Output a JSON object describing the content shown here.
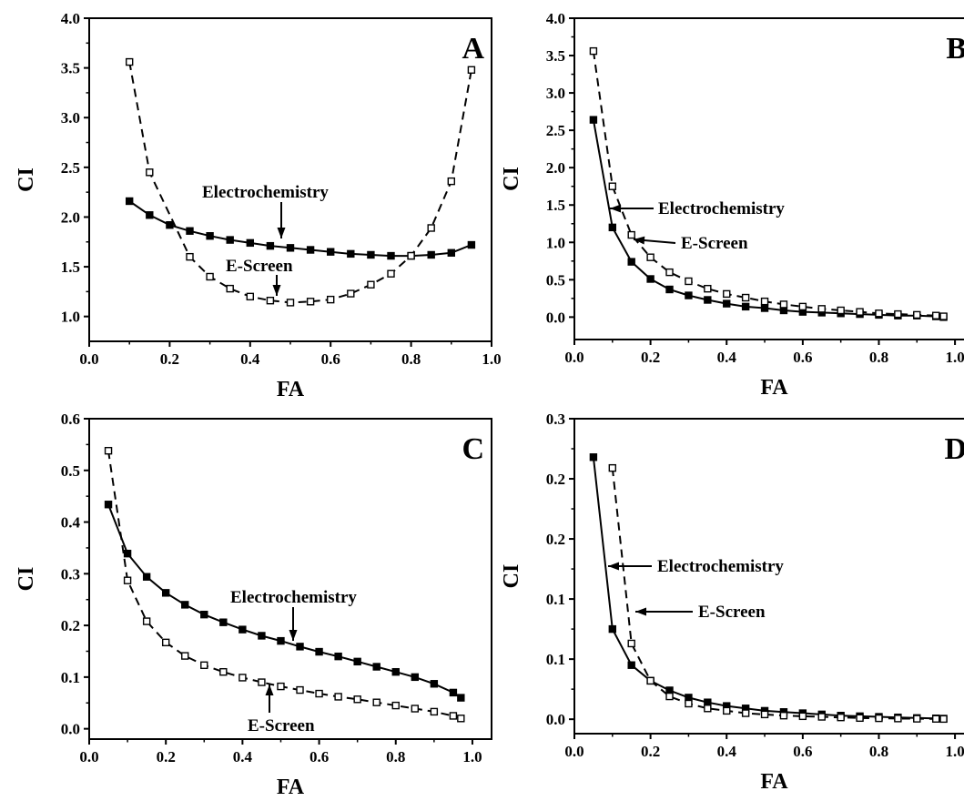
{
  "chart_data": [
    {
      "panel_label": "A",
      "type": "line",
      "xlabel": "FA",
      "ylabel": "CI",
      "xlim": [
        0.0,
        1.0
      ],
      "ylim": [
        0.75,
        4.0
      ],
      "xticks": [
        0.0,
        0.2,
        0.4,
        0.6,
        0.8,
        1.0
      ],
      "xtick_labels": [
        "0.0",
        "0.2",
        "0.4",
        "0.6",
        "0.8",
        "1.0"
      ],
      "yticks": [
        1.0,
        1.5,
        2.0,
        2.5,
        3.0,
        3.5,
        4.0
      ],
      "ytick_labels": [
        "1.0",
        "1.5",
        "2.0",
        "2.5",
        "3.0",
        "3.5",
        "4.0"
      ],
      "series": [
        {
          "name": "Electrochemistry",
          "style": "solid",
          "marker": "filled-square",
          "x": [
            0.1,
            0.15,
            0.2,
            0.25,
            0.3,
            0.35,
            0.4,
            0.45,
            0.5,
            0.55,
            0.6,
            0.65,
            0.7,
            0.75,
            0.8,
            0.85,
            0.9,
            0.95
          ],
          "y": [
            2.16,
            2.02,
            1.92,
            1.86,
            1.81,
            1.77,
            1.74,
            1.71,
            1.69,
            1.67,
            1.65,
            1.63,
            1.62,
            1.61,
            1.61,
            1.62,
            1.64,
            1.72
          ]
        },
        {
          "name": "E-Screen",
          "style": "dashed",
          "marker": "open-square",
          "x": [
            0.1,
            0.15,
            0.25,
            0.3,
            0.35,
            0.4,
            0.45,
            0.5,
            0.55,
            0.6,
            0.65,
            0.7,
            0.75,
            0.8,
            0.85,
            0.9,
            0.95
          ],
          "y": [
            3.56,
            2.45,
            1.6,
            1.4,
            1.28,
            1.2,
            1.16,
            1.14,
            1.15,
            1.17,
            1.23,
            1.32,
            1.43,
            1.61,
            1.89,
            2.36,
            3.48
          ]
        }
      ],
      "annotations": [
        {
          "text": "Electrochemistry",
          "series": 0,
          "at": 0.53
        },
        {
          "text": "E-Screen",
          "series": 1,
          "at": 0.53
        }
      ]
    },
    {
      "panel_label": "B",
      "type": "line",
      "xlabel": "FA",
      "ylabel": "CI",
      "xlim": [
        0.0,
        1.05
      ],
      "ylim": [
        -0.3,
        4.0
      ],
      "xticks": [
        0.0,
        0.2,
        0.4,
        0.6,
        0.8,
        1.0
      ],
      "xtick_labels": [
        "0.0",
        "0.2",
        "0.4",
        "0.6",
        "0.8",
        "1.0"
      ],
      "yticks": [
        0.0,
        0.5,
        1.0,
        1.5,
        2.0,
        2.5,
        3.0,
        3.5,
        4.0
      ],
      "ytick_labels": [
        "0.0",
        "0.5",
        "1.0",
        "1.5",
        "2.0",
        "2.5",
        "3.0",
        "3.5",
        "4.0"
      ],
      "series": [
        {
          "name": "Electrochemistry",
          "style": "solid",
          "marker": "filled-square",
          "x": [
            0.05,
            0.1,
            0.15,
            0.2,
            0.25,
            0.3,
            0.35,
            0.4,
            0.45,
            0.5,
            0.55,
            0.6,
            0.65,
            0.7,
            0.75,
            0.8,
            0.85,
            0.9,
            0.95,
            0.97
          ],
          "y": [
            2.64,
            1.2,
            0.74,
            0.51,
            0.37,
            0.29,
            0.23,
            0.18,
            0.14,
            0.12,
            0.09,
            0.07,
            0.06,
            0.05,
            0.04,
            0.03,
            0.02,
            0.02,
            0.01,
            0.0
          ]
        },
        {
          "name": "E-Screen",
          "style": "dashed",
          "marker": "open-square",
          "x": [
            0.05,
            0.1,
            0.15,
            0.2,
            0.25,
            0.3,
            0.35,
            0.4,
            0.45,
            0.5,
            0.55,
            0.6,
            0.65,
            0.7,
            0.75,
            0.8,
            0.85,
            0.9,
            0.95,
            0.97
          ],
          "y": [
            3.56,
            1.75,
            1.1,
            0.8,
            0.6,
            0.48,
            0.38,
            0.31,
            0.26,
            0.21,
            0.17,
            0.14,
            0.11,
            0.09,
            0.07,
            0.05,
            0.04,
            0.03,
            0.02,
            0.01
          ]
        }
      ],
      "annotations": [
        {
          "text": "Electrochemistry",
          "series": 0,
          "at": 0.1
        },
        {
          "text": "E-Screen",
          "series": 1,
          "at": 0.15
        }
      ]
    },
    {
      "panel_label": "C",
      "type": "line",
      "xlabel": "FA",
      "ylabel": "CI",
      "xlim": [
        0.0,
        1.05
      ],
      "ylim": [
        -0.02,
        0.6
      ],
      "xticks": [
        0.0,
        0.2,
        0.4,
        0.6,
        0.8,
        1.0
      ],
      "xtick_labels": [
        "0.0",
        "0.2",
        "0.4",
        "0.6",
        "0.8",
        "1.0"
      ],
      "yticks": [
        0.0,
        0.1,
        0.2,
        0.3,
        0.4,
        0.5,
        0.6
      ],
      "ytick_labels": [
        "0.0",
        "0.1",
        "0.2",
        "0.3",
        "0.4",
        "0.5",
        "0.6"
      ],
      "series": [
        {
          "name": "Electrochemistry",
          "style": "solid",
          "marker": "filled-square",
          "x": [
            0.05,
            0.1,
            0.15,
            0.2,
            0.25,
            0.3,
            0.35,
            0.4,
            0.45,
            0.5,
            0.55,
            0.6,
            0.65,
            0.7,
            0.75,
            0.8,
            0.85,
            0.9,
            0.95,
            0.97
          ],
          "y": [
            0.434,
            0.339,
            0.294,
            0.263,
            0.24,
            0.221,
            0.206,
            0.192,
            0.18,
            0.17,
            0.159,
            0.149,
            0.14,
            0.13,
            0.12,
            0.11,
            0.1,
            0.087,
            0.07,
            0.06
          ]
        },
        {
          "name": "E-Screen",
          "style": "dashed",
          "marker": "open-square",
          "x": [
            0.05,
            0.1,
            0.15,
            0.2,
            0.25,
            0.3,
            0.35,
            0.4,
            0.45,
            0.5,
            0.55,
            0.6,
            0.65,
            0.7,
            0.75,
            0.8,
            0.85,
            0.9,
            0.95,
            0.97
          ],
          "y": [
            0.538,
            0.287,
            0.208,
            0.167,
            0.141,
            0.123,
            0.11,
            0.099,
            0.09,
            0.082,
            0.075,
            0.068,
            0.062,
            0.057,
            0.051,
            0.045,
            0.039,
            0.033,
            0.025,
            0.02
          ]
        }
      ],
      "annotations": [
        {
          "text": "Electrochemistry",
          "series": 0,
          "at": 0.565
        },
        {
          "text": "E-Screen",
          "series": 1,
          "at": 0.5
        }
      ]
    },
    {
      "panel_label": "D",
      "type": "line",
      "xlabel": "FA",
      "ylabel": "CI",
      "xlim": [
        0.0,
        1.05
      ],
      "ylim": [
        -0.012,
        0.25
      ],
      "xticks": [
        0.0,
        0.2,
        0.4,
        0.6,
        0.8,
        1.0
      ],
      "xtick_labels": [
        "0.0",
        "0.2",
        "0.4",
        "0.6",
        "0.8",
        "1.0"
      ],
      "yticks": [
        0.0,
        0.05,
        0.1,
        0.15,
        0.2,
        0.25
      ],
      "ytick_labels": [
        "0.0",
        "0.1",
        "0.1",
        "0.2",
        "0.2",
        "0.3"
      ],
      "series": [
        {
          "name": "Electrochemistry",
          "style": "solid",
          "marker": "filled-square",
          "x": [
            0.05,
            0.1,
            0.15,
            0.2,
            0.25,
            0.3,
            0.35,
            0.4,
            0.45,
            0.5,
            0.55,
            0.6,
            0.65,
            0.7,
            0.75,
            0.8,
            0.85,
            0.9,
            0.95,
            0.97
          ],
          "y": [
            0.218,
            0.075,
            0.045,
            0.032,
            0.024,
            0.018,
            0.014,
            0.011,
            0.009,
            0.007,
            0.006,
            0.005,
            0.004,
            0.003,
            0.0025,
            0.002,
            0.0015,
            0.001,
            0.0007,
            0.0005
          ]
        },
        {
          "name": "E-Screen",
          "style": "dashed",
          "marker": "open-square",
          "x": [
            0.1,
            0.15,
            0.2,
            0.25,
            0.3,
            0.35,
            0.4,
            0.45,
            0.5,
            0.55,
            0.6,
            0.65,
            0.7,
            0.75,
            0.8,
            0.85,
            0.9,
            0.95,
            0.97
          ],
          "y": [
            0.209,
            0.063,
            0.032,
            0.019,
            0.013,
            0.009,
            0.007,
            0.005,
            0.004,
            0.003,
            0.0025,
            0.002,
            0.0015,
            0.001,
            0.0008,
            0.0006,
            0.0004,
            0.0003,
            0.0002
          ]
        }
      ],
      "annotations": [
        {
          "text": "Electrochemistry",
          "series": 0,
          "at": 0.09
        },
        {
          "text": "E-Screen",
          "series": 1,
          "at": 0.15
        }
      ]
    }
  ]
}
